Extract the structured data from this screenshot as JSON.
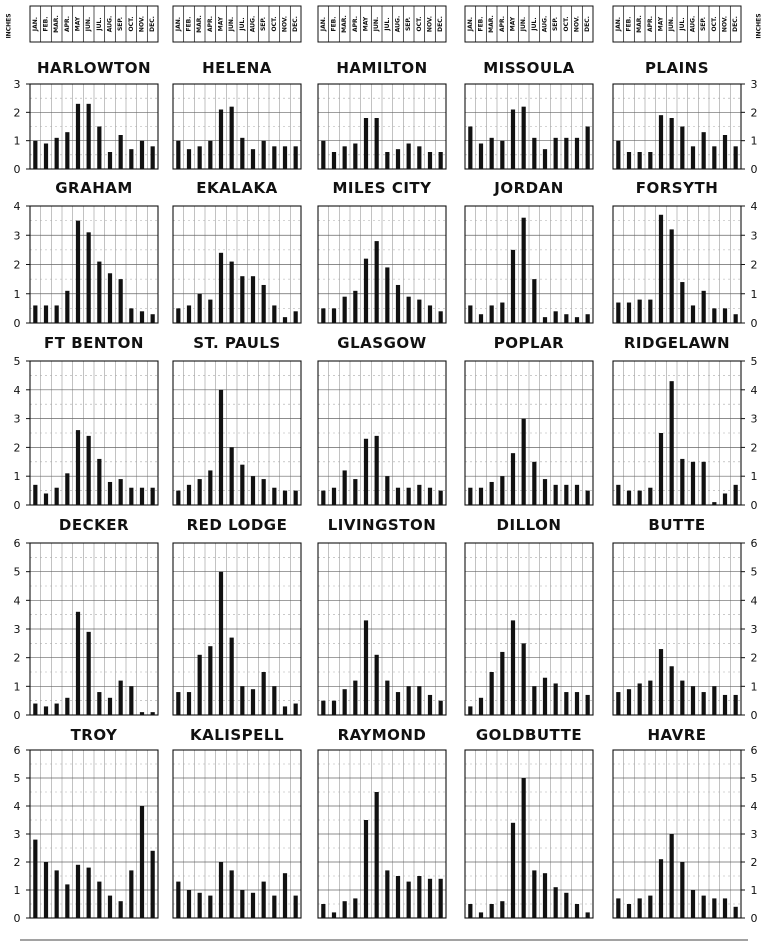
{
  "figure": {
    "units_label": "INCHES",
    "months": [
      "JAN.",
      "FEB.",
      "MAR.",
      "APR.",
      "MAY",
      "JUN.",
      "JUL.",
      "AUG.",
      "SEP.",
      "OCT.",
      "NOV.",
      "DEC."
    ]
  },
  "chart_data": [
    {
      "type": "bar",
      "title": "HARLOWTON",
      "categories": [
        "JAN.",
        "FEB.",
        "MAR.",
        "APR.",
        "MAY",
        "JUN.",
        "JUL.",
        "AUG.",
        "SEP.",
        "OCT.",
        "NOV.",
        "DEC."
      ],
      "ylim": [
        0,
        3
      ],
      "values": [
        1.0,
        0.9,
        1.1,
        1.3,
        2.3,
        2.3,
        1.5,
        0.6,
        1.2,
        0.7,
        1.0,
        0.8
      ]
    },
    {
      "type": "bar",
      "title": "HELENA",
      "categories": [
        "JAN.",
        "FEB.",
        "MAR.",
        "APR.",
        "MAY",
        "JUN.",
        "JUL.",
        "AUG.",
        "SEP.",
        "OCT.",
        "NOV.",
        "DEC."
      ],
      "ylim": [
        0,
        3
      ],
      "values": [
        1.0,
        0.7,
        0.8,
        1.0,
        2.1,
        2.2,
        1.1,
        0.7,
        1.0,
        0.8,
        0.8,
        0.8
      ]
    },
    {
      "type": "bar",
      "title": "HAMILTON",
      "categories": [
        "JAN.",
        "FEB.",
        "MAR.",
        "APR.",
        "MAY",
        "JUN.",
        "JUL.",
        "AUG.",
        "SEP.",
        "OCT.",
        "NOV.",
        "DEC."
      ],
      "ylim": [
        0,
        3
      ],
      "values": [
        1.0,
        0.6,
        0.8,
        0.9,
        1.8,
        1.8,
        0.6,
        0.7,
        0.9,
        0.8,
        0.6,
        0.6
      ]
    },
    {
      "type": "bar",
      "title": "MISSOULA",
      "categories": [
        "JAN.",
        "FEB.",
        "MAR.",
        "APR.",
        "MAY",
        "JUN.",
        "JUL.",
        "AUG.",
        "SEP.",
        "OCT.",
        "NOV.",
        "DEC."
      ],
      "ylim": [
        0,
        3
      ],
      "values": [
        1.5,
        0.9,
        1.1,
        1.0,
        2.1,
        2.2,
        1.1,
        0.7,
        1.1,
        1.1,
        1.1,
        1.5
      ]
    },
    {
      "type": "bar",
      "title": "PLAINS",
      "categories": [
        "JAN.",
        "FEB.",
        "MAR.",
        "APR.",
        "MAY",
        "JUN.",
        "JUL.",
        "AUG.",
        "SEP.",
        "OCT.",
        "NOV.",
        "DEC."
      ],
      "ylim": [
        0,
        3
      ],
      "values": [
        1.0,
        0.6,
        0.6,
        0.6,
        1.9,
        1.8,
        1.5,
        0.8,
        1.3,
        0.8,
        1.2,
        0.8
      ]
    },
    {
      "type": "bar",
      "title": "GRAHAM",
      "categories": [
        "JAN.",
        "FEB.",
        "MAR.",
        "APR.",
        "MAY",
        "JUN.",
        "JUL.",
        "AUG.",
        "SEP.",
        "OCT.",
        "NOV.",
        "DEC."
      ],
      "ylim": [
        0,
        4
      ],
      "values": [
        0.6,
        0.6,
        0.6,
        1.1,
        3.5,
        3.1,
        2.1,
        1.7,
        1.5,
        0.5,
        0.4,
        0.3
      ]
    },
    {
      "type": "bar",
      "title": "EKALAKA",
      "categories": [
        "JAN.",
        "FEB.",
        "MAR.",
        "APR.",
        "MAY",
        "JUN.",
        "JUL.",
        "AUG.",
        "SEP.",
        "OCT.",
        "NOV.",
        "DEC."
      ],
      "ylim": [
        0,
        4
      ],
      "values": [
        0.5,
        0.6,
        1.0,
        0.8,
        2.4,
        2.1,
        1.6,
        1.6,
        1.3,
        0.6,
        0.2,
        0.4
      ]
    },
    {
      "type": "bar",
      "title": "MILES CITY",
      "categories": [
        "JAN.",
        "FEB.",
        "MAR.",
        "APR.",
        "MAY",
        "JUN.",
        "JUL.",
        "AUG.",
        "SEP.",
        "OCT.",
        "NOV.",
        "DEC."
      ],
      "ylim": [
        0,
        4
      ],
      "values": [
        0.5,
        0.5,
        0.9,
        1.1,
        2.2,
        2.8,
        1.9,
        1.3,
        0.9,
        0.8,
        0.6,
        0.4
      ]
    },
    {
      "type": "bar",
      "title": "JORDAN",
      "categories": [
        "JAN.",
        "FEB.",
        "MAR.",
        "APR.",
        "MAY",
        "JUN.",
        "JUL.",
        "AUG.",
        "SEP.",
        "OCT.",
        "NOV.",
        "DEC."
      ],
      "ylim": [
        0,
        4
      ],
      "values": [
        0.6,
        0.3,
        0.6,
        0.7,
        2.5,
        3.6,
        1.5,
        0.2,
        0.4,
        0.3,
        0.2,
        0.3
      ]
    },
    {
      "type": "bar",
      "title": "FORSYTH",
      "categories": [
        "JAN.",
        "FEB.",
        "MAR.",
        "APR.",
        "MAY",
        "JUN.",
        "JUL.",
        "AUG.",
        "SEP.",
        "OCT.",
        "NOV.",
        "DEC."
      ],
      "ylim": [
        0,
        4
      ],
      "values": [
        0.7,
        0.7,
        0.8,
        0.8,
        3.7,
        3.2,
        1.4,
        0.6,
        1.1,
        0.5,
        0.5,
        0.3
      ]
    },
    {
      "type": "bar",
      "title": "FT BENTON",
      "categories": [
        "JAN.",
        "FEB.",
        "MAR.",
        "APR.",
        "MAY",
        "JUN.",
        "JUL.",
        "AUG.",
        "SEP.",
        "OCT.",
        "NOV.",
        "DEC."
      ],
      "ylim": [
        0,
        5
      ],
      "values": [
        0.7,
        0.4,
        0.6,
        1.1,
        2.6,
        2.4,
        1.6,
        0.8,
        0.9,
        0.6,
        0.6,
        0.6
      ]
    },
    {
      "type": "bar",
      "title": "ST. PAULS",
      "categories": [
        "JAN.",
        "FEB.",
        "MAR.",
        "APR.",
        "MAY",
        "JUN.",
        "JUL.",
        "AUG.",
        "SEP.",
        "OCT.",
        "NOV.",
        "DEC."
      ],
      "ylim": [
        0,
        5
      ],
      "values": [
        0.5,
        0.7,
        0.9,
        1.2,
        4.0,
        2.0,
        1.4,
        1.0,
        0.9,
        0.6,
        0.5,
        0.5
      ]
    },
    {
      "type": "bar",
      "title": "GLASGOW",
      "categories": [
        "JAN.",
        "FEB.",
        "MAR.",
        "APR.",
        "MAY",
        "JUN.",
        "JUL.",
        "AUG.",
        "SEP.",
        "OCT.",
        "NOV.",
        "DEC."
      ],
      "ylim": [
        0,
        5
      ],
      "values": [
        0.5,
        0.6,
        1.2,
        0.9,
        2.3,
        2.4,
        1.0,
        0.6,
        0.6,
        0.7,
        0.6,
        0.5
      ]
    },
    {
      "type": "bar",
      "title": "POPLAR",
      "categories": [
        "JAN.",
        "FEB.",
        "MAR.",
        "APR.",
        "MAY",
        "JUN.",
        "JUL.",
        "AUG.",
        "SEP.",
        "OCT.",
        "NOV.",
        "DEC."
      ],
      "ylim": [
        0,
        5
      ],
      "values": [
        0.6,
        0.6,
        0.8,
        1.0,
        1.8,
        3.0,
        1.5,
        0.9,
        0.7,
        0.7,
        0.7,
        0.5
      ]
    },
    {
      "type": "bar",
      "title": "RIDGELAWN",
      "categories": [
        "JAN.",
        "FEB.",
        "MAR.",
        "APR.",
        "MAY",
        "JUN.",
        "JUL.",
        "AUG.",
        "SEP.",
        "OCT.",
        "NOV.",
        "DEC."
      ],
      "ylim": [
        0,
        5
      ],
      "values": [
        0.7,
        0.5,
        0.5,
        0.6,
        2.5,
        4.3,
        1.6,
        1.5,
        1.5,
        0.1,
        0.4,
        0.7
      ]
    },
    {
      "type": "bar",
      "title": "DECKER",
      "categories": [
        "JAN.",
        "FEB.",
        "MAR.",
        "APR.",
        "MAY",
        "JUN.",
        "JUL.",
        "AUG.",
        "SEP.",
        "OCT.",
        "NOV.",
        "DEC."
      ],
      "ylim": [
        0,
        6
      ],
      "values": [
        0.4,
        0.3,
        0.4,
        0.6,
        3.6,
        2.9,
        0.8,
        0.6,
        1.2,
        1.0,
        0.1,
        0.1
      ]
    },
    {
      "type": "bar",
      "title": "RED LODGE",
      "categories": [
        "JAN.",
        "FEB.",
        "MAR.",
        "APR.",
        "MAY",
        "JUN.",
        "JUL.",
        "AUG.",
        "SEP.",
        "OCT.",
        "NOV.",
        "DEC."
      ],
      "ylim": [
        0,
        6
      ],
      "values": [
        0.8,
        0.8,
        2.1,
        2.4,
        5.0,
        2.7,
        1.0,
        0.9,
        1.5,
        1.0,
        0.3,
        0.4
      ]
    },
    {
      "type": "bar",
      "title": "LIVINGSTON",
      "categories": [
        "JAN.",
        "FEB.",
        "MAR.",
        "APR.",
        "MAY",
        "JUN.",
        "JUL.",
        "AUG.",
        "SEP.",
        "OCT.",
        "NOV.",
        "DEC."
      ],
      "ylim": [
        0,
        6
      ],
      "values": [
        0.5,
        0.5,
        0.9,
        1.2,
        3.3,
        2.1,
        1.2,
        0.8,
        1.0,
        1.0,
        0.7,
        0.5
      ]
    },
    {
      "type": "bar",
      "title": "DILLON",
      "categories": [
        "JAN.",
        "FEB.",
        "MAR.",
        "APR.",
        "MAY",
        "JUN.",
        "JUL.",
        "AUG.",
        "SEP.",
        "OCT.",
        "NOV.",
        "DEC."
      ],
      "ylim": [
        0,
        6
      ],
      "values": [
        0.3,
        0.6,
        1.5,
        2.2,
        3.3,
        2.5,
        1.0,
        1.3,
        1.1,
        0.8,
        0.8,
        0.7
      ]
    },
    {
      "type": "bar",
      "title": "BUTTE",
      "categories": [
        "JAN.",
        "FEB.",
        "MAR.",
        "APR.",
        "MAY",
        "JUN.",
        "JUL.",
        "AUG.",
        "SEP.",
        "OCT.",
        "NOV.",
        "DEC."
      ],
      "ylim": [
        0,
        6
      ],
      "values": [
        0.8,
        0.9,
        1.1,
        1.2,
        2.3,
        1.7,
        1.2,
        1.0,
        0.8,
        1.0,
        0.7,
        0.7
      ]
    },
    {
      "type": "bar",
      "title": "TROY",
      "categories": [
        "JAN.",
        "FEB.",
        "MAR.",
        "APR.",
        "MAY",
        "JUN.",
        "JUL.",
        "AUG.",
        "SEP.",
        "OCT.",
        "NOV.",
        "DEC."
      ],
      "ylim": [
        0,
        6
      ],
      "values": [
        2.8,
        2.0,
        1.7,
        1.2,
        1.9,
        1.8,
        1.3,
        0.8,
        0.6,
        1.7,
        4.0,
        2.4
      ]
    },
    {
      "type": "bar",
      "title": "KALISPELL",
      "categories": [
        "JAN.",
        "FEB.",
        "MAR.",
        "APR.",
        "MAY",
        "JUN.",
        "JUL.",
        "AUG.",
        "SEP.",
        "OCT.",
        "NOV.",
        "DEC."
      ],
      "ylim": [
        0,
        6
      ],
      "values": [
        1.3,
        1.0,
        0.9,
        0.8,
        2.0,
        1.7,
        1.0,
        0.9,
        1.3,
        0.8,
        1.6,
        0.8
      ]
    },
    {
      "type": "bar",
      "title": "RAYMOND",
      "categories": [
        "JAN.",
        "FEB.",
        "MAR.",
        "APR.",
        "MAY",
        "JUN.",
        "JUL.",
        "AUG.",
        "SEP.",
        "OCT.",
        "NOV.",
        "DEC."
      ],
      "ylim": [
        0,
        6
      ],
      "values": [
        0.5,
        0.2,
        0.6,
        0.7,
        3.5,
        4.5,
        1.7,
        1.5,
        1.3,
        1.5,
        1.4,
        1.4
      ]
    },
    {
      "type": "bar",
      "title": "GOLDBUTTE",
      "categories": [
        "JAN.",
        "FEB.",
        "MAR.",
        "APR.",
        "MAY",
        "JUN.",
        "JUL.",
        "AUG.",
        "SEP.",
        "OCT.",
        "NOV.",
        "DEC."
      ],
      "ylim": [
        0,
        6
      ],
      "values": [
        0.5,
        0.2,
        0.5,
        0.6,
        3.4,
        5.0,
        1.7,
        1.6,
        1.1,
        0.9,
        0.5,
        0.2
      ]
    },
    {
      "type": "bar",
      "title": "HAVRE",
      "categories": [
        "JAN.",
        "FEB.",
        "MAR.",
        "APR.",
        "MAY",
        "JUN.",
        "JUL.",
        "AUG.",
        "SEP.",
        "OCT.",
        "NOV.",
        "DEC."
      ],
      "ylim": [
        0,
        6
      ],
      "values": [
        0.7,
        0.5,
        0.7,
        0.8,
        2.1,
        3.0,
        2.0,
        1.0,
        0.8,
        0.7,
        0.7,
        0.4
      ]
    }
  ]
}
